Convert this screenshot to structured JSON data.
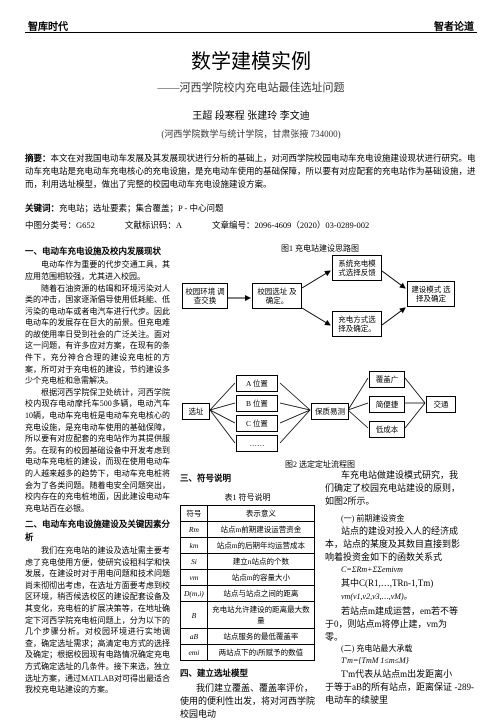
{
  "header": {
    "left": "智库时代",
    "right": "智者论道"
  },
  "title": "数学建模实例",
  "subtitle": "——河西学院校内充电站最佳选址问题",
  "authors": "王超 段寒程 张建玲 李文迪",
  "affiliation": "(河西学院数学与统计学院，甘肃张掖 734000)",
  "abstract": {
    "label": "摘要：",
    "text": "本文在对我国电动车发展及其发展现状进行分析的基础上，对河西学院校园电动车充电设施建设现状进行研究。电动车充电站是充电动车充电核心的充电设施，是充电动车使用的基础保障，所以要有对应配套的充电站作为基础设施，进而，利用选址模型，做出了完整的校园电动车充电设施建设方案。"
  },
  "keywords": {
    "label": "关键词：",
    "text": "充电站；选址要素；集合覆盖；P - 中心问题"
  },
  "classification": {
    "cn": "中图分类号：G652",
    "doc": "文献标识码：A",
    "article": "文章编号：2096-4609（2020）03-0289-002"
  },
  "section1": {
    "title": "一、电动车充电设施及校内发展现状",
    "p1": "电动车作为重要的代步交通工具，其应用范围相较强，尤其进入校园。",
    "p2": "随着石油资源的枯竭和环境污染对人类的冲击，国家逐渐倡导使用低耗能、低污染的电动车或者电汽车进行代步。因此电动车的发展存在巨大的前景。但充电难的故使用率日受到社会的广泛关注。面对这一问题，有许多应对方案，在现有的条件下，充分神合合理的建设充电桩的方案，所可对于充电桩的建设，节约建设多少个充电桩和急需解决。",
    "p3": "根据河西学院保卫处统计，河西学院校内现存电动摩托车500多辆，电动汽车10辆，电动车充电桩是电动车充电核心的充电设施，是充电动车使用的基础保障，所以要有对应配套的充电站作为其提供服务。在现有的校园基础设备中开发考虑到电动车充电桩的建设，而现在使用电动车的人越来越多的趋势下，电动车充电桩将会为了各类问题。随着电安全问题突出，校内存在的充电桩地面，因此建设电动车充电站百在必银。"
  },
  "section2": {
    "title": "二、电动车充电设施建设及关键因素分析",
    "p1": "我们在充电站的建设及选址需主要考虑了充电使用方便，使研究设租科学和快发展，在建设时对于用电问题和技术问题尚未彻彻出考虑，在选址方面要考虑到校区环境，稍否候选校区的建设配套设备及其变化，充电桩的扩展决策等，在地址确定下河西学院充电桩问题上，分为以下的几个步骤分析。对校园环境进行实地调查，确定选址需求；高清定电方式的选择及确定；根据校园现有电路情况确定充电方式确定选址的几条件。接下来选，独立选址方案，通过MATLAB对可得出最适合我校充电站建设的方案。"
  },
  "diag1": {
    "n1": "校园环境\n调查交换",
    "n2": "校园选址\n及确定。",
    "n3": "系统充电模\n式选择反馈",
    "n4": "充电方式选\n择及确定。",
    "n5": "建设模式\n选择及确定",
    "caption": "图1  充电站建设思路图"
  },
  "diag2": {
    "n1": "选址",
    "n2": "A 位置",
    "n3": "B 位置",
    "n4": "C 位置",
    "n5": "……",
    "n6": "保质易测",
    "n7": "覆盖广",
    "n8": "简便捷",
    "n9": "低成本",
    "n10": "交通",
    "caption": "图2  选定定址流程图"
  },
  "section3": {
    "title": "三、符号说明",
    "table_caption": "表1  符号说明",
    "rows": [
      [
        "符号",
        "表示意义"
      ],
      [
        "Rm",
        "站点m前期建设运营资金"
      ],
      [
        "km",
        "站点m的后期年均运营成本"
      ],
      [
        "Si",
        "建立n站点的个数"
      ],
      [
        "vm",
        "站点m的容量大小"
      ],
      [
        "D(m,i)",
        "站点与站点之间的距离"
      ],
      [
        "B",
        "充电站允许建设的距离最大数量"
      ],
      [
        "aB",
        "站点服务的最低覆盖率"
      ],
      [
        "emi",
        "两站点下的i所赋予的数值"
      ]
    ]
  },
  "section4": {
    "title": "四、建立选址模型",
    "p1": "我们建立覆盖、覆盖率评价，使用的便利性出发，将对河西学院校园电动"
  },
  "right_col": {
    "p1": "车充电站做建设模式研究，我们确定了校园充电站建设的原则，如图2所示。",
    "s1_title": "(一) 前期建设资金",
    "s1_text": "站点的建设对投入人的经济成本，站点的某度及其数目直接到影响着投资金如下的函数关系式",
    "f1": "C=ΣRm+ΣΣemivm",
    "s2_text": "其中C(R1,…,TRn-1,Tm)",
    "s2_text2": "vm(v1,v2,v3,…,vM)。",
    "s3_text": "若站点m建成运营，em若不等于0，则站点m将停止建，vm为零。",
    "s4_title": "(二) 充电站最大承载",
    "f2": "T'm={TmM 1≤m≤M}",
    "s5_text": "T'm代表从站点m出发距离小于等于aB的所有站点，距离保证电动车的续驶里"
  },
  "page": "-289-"
}
